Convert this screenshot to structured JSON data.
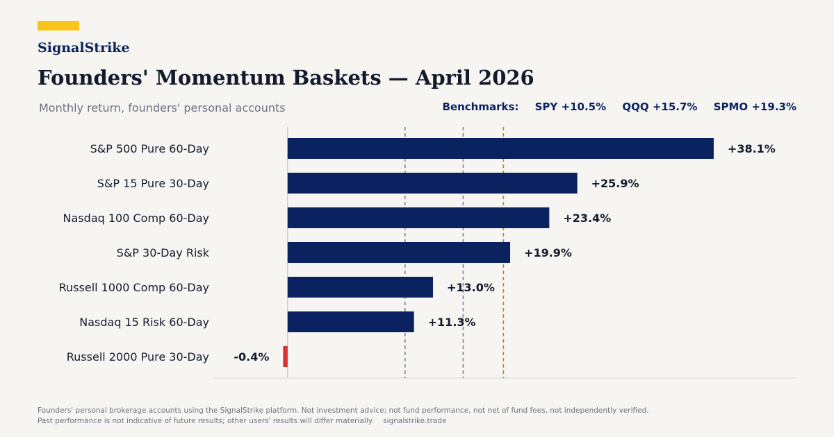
{
  "brand": {
    "name": "SignalStrike",
    "accent_color": "#f7c51b",
    "text_color": "#0b2260"
  },
  "header": {
    "title": "Founders' Momentum Baskets — April 2026",
    "subtitle": "Monthly return, founders' personal accounts"
  },
  "benchmarks": {
    "prefix": "Benchmarks:",
    "items": [
      {
        "label": "SPY +10.5%",
        "value": 10.5,
        "color": "#7a7f94"
      },
      {
        "label": "QQQ +15.7%",
        "value": 15.7,
        "color": "#9b6fb3"
      },
      {
        "label": "SPMO +19.3%",
        "value": 19.3,
        "color": "#b58a12"
      }
    ]
  },
  "chart_data": {
    "type": "bar",
    "orientation": "horizontal",
    "categories": [
      "S&P 500 Pure 60-Day",
      "S&P 15 Pure 30-Day",
      "Nasdaq 100 Comp 60-Day",
      "S&P 30-Day Risk",
      "Russell 1000 Comp 60-Day",
      "Nasdaq 15 Risk 60-Day",
      "Russell 2000 Pure 30-Day"
    ],
    "values": [
      38.1,
      25.9,
      23.4,
      19.9,
      13.0,
      11.3,
      -0.4
    ],
    "value_labels": [
      "+38.1%",
      "+25.9%",
      "+23.4%",
      "+19.9%",
      "+13.0%",
      "+11.3%",
      "-0.4%"
    ],
    "xlim": [
      -6.7,
      45.5
    ],
    "positive_color": "#0b2260",
    "negative_color": "#d93232",
    "reference_lines": [
      10.5,
      15.7,
      19.3
    ],
    "grid": false
  },
  "footer": {
    "line1": "Founders' personal brokerage accounts using the SignalStrike platform. Not investment advice; not fund performance, not net of fund fees, not independently verified.",
    "line2": "Past performance is not indicative of future results; other users' results will differ materially.",
    "url": "signalstrike.trade"
  }
}
